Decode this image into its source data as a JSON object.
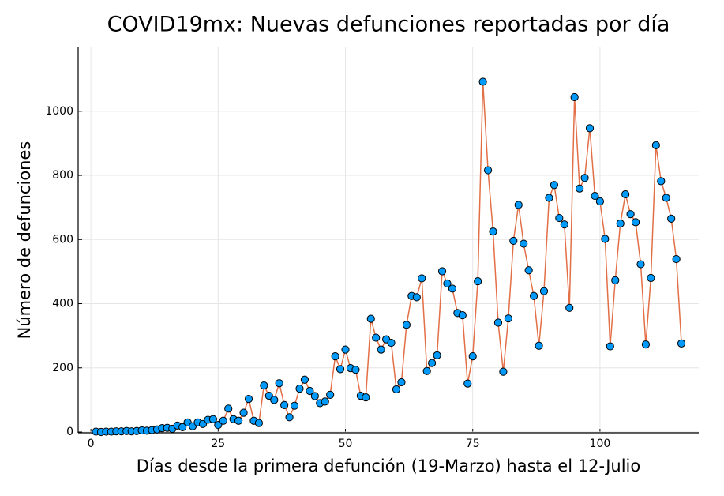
{
  "chart_data": {
    "type": "line",
    "title": "COVID19mx: Nuevas defunciones reportadas por día",
    "xlabel": "Días desde la primera defunción (19-Marzo) hasta el 12-Julio",
    "ylabel": "Número de defunciones",
    "x": [
      1,
      2,
      3,
      4,
      5,
      6,
      7,
      8,
      9,
      10,
      11,
      12,
      13,
      14,
      15,
      16,
      17,
      18,
      19,
      20,
      21,
      22,
      23,
      24,
      25,
      26,
      27,
      28,
      29,
      30,
      31,
      32,
      33,
      34,
      35,
      36,
      37,
      38,
      39,
      40,
      41,
      42,
      43,
      44,
      45,
      46,
      47,
      48,
      49,
      50,
      51,
      52,
      53,
      54,
      55,
      56,
      57,
      58,
      59,
      60,
      61,
      62,
      63,
      64,
      65,
      66,
      67,
      68,
      69,
      70,
      71,
      72,
      73,
      74,
      75,
      76,
      77,
      78,
      79,
      80,
      81,
      82,
      83,
      84,
      85,
      86,
      87,
      88,
      89,
      90,
      91,
      92,
      93,
      94,
      95,
      96,
      97,
      98,
      99,
      100,
      101,
      102,
      103,
      104,
      105,
      106,
      107,
      108,
      109,
      110,
      111,
      112,
      113,
      114,
      115,
      116
    ],
    "values": [
      1,
      0,
      1,
      1,
      2,
      2,
      3,
      2,
      3,
      5,
      4,
      6,
      8,
      12,
      13,
      10,
      20,
      15,
      30,
      18,
      30,
      25,
      38,
      40,
      22,
      35,
      73,
      40,
      35,
      60,
      103,
      35,
      28,
      145,
      113,
      100,
      152,
      84,
      46,
      82,
      135,
      163,
      128,
      112,
      90,
      95,
      116,
      236,
      196,
      257,
      199,
      194,
      113,
      108,
      353,
      294,
      257,
      289,
      278,
      133,
      155,
      334,
      424,
      420,
      479,
      190,
      215,
      239,
      501,
      463,
      447,
      371,
      364,
      151,
      236,
      470,
      1092,
      816,
      625,
      341,
      188,
      354,
      596,
      708,
      587,
      504,
      424,
      269,
      439,
      730,
      770,
      667,
      647,
      387,
      1044,
      759,
      792,
      947,
      736,
      719,
      602,
      267,
      473,
      650,
      741,
      679,
      654,
      523,
      273,
      480,
      894,
      782,
      730,
      665,
      539,
      276
    ],
    "line_color": "#e26f46",
    "marker_color": "#009afa",
    "xlim": [
      -2.5,
      119.4
    ],
    "ylim": [
      -2.5,
      1199
    ],
    "xticks": [
      0,
      25,
      50,
      75,
      100
    ],
    "yticks": [
      0,
      200,
      400,
      600,
      800,
      1000
    ],
    "grid": true
  }
}
